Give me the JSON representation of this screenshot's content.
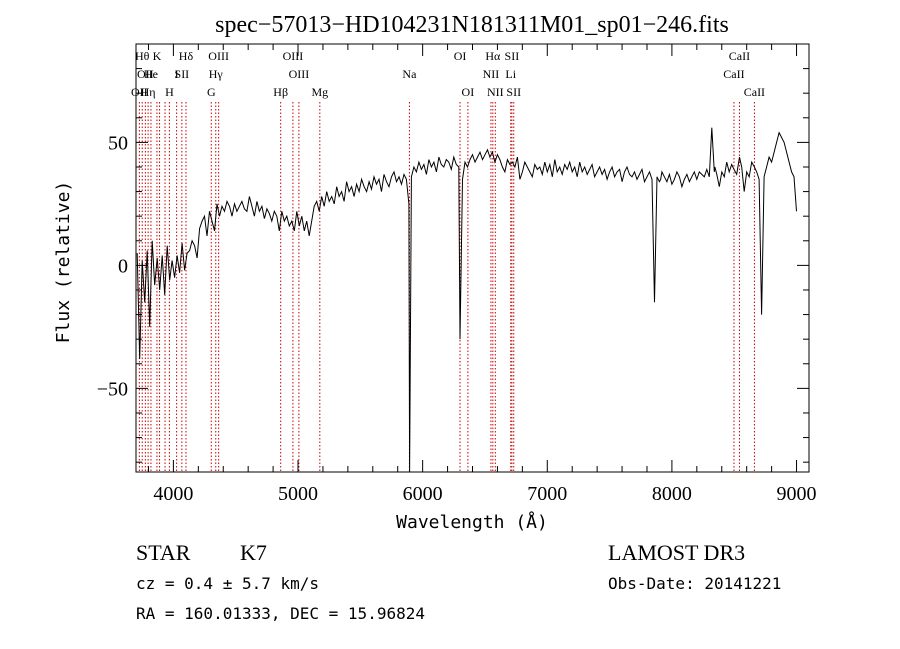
{
  "chart_data": {
    "type": "line",
    "title": "spec−57013−HD104231N181311M01_sp01−246.fits",
    "xlabel": "Wavelength (Å)",
    "ylabel": "Flux (relative)",
    "xlim": [
      3700,
      9100
    ],
    "ylim": [
      -84,
      90
    ],
    "xticks": [
      4000,
      5000,
      6000,
      7000,
      8000,
      9000
    ],
    "yticks": [
      50,
      0,
      -50
    ],
    "ytick_labels": [
      "50",
      "0",
      "−50"
    ],
    "grid": false,
    "line_color": "#000000",
    "marker_color": "#cc0000",
    "series": [
      {
        "x": [
          3710,
          3730,
          3750,
          3770,
          3790,
          3810,
          3830,
          3850,
          3870,
          3890,
          3910,
          3930,
          3950,
          3970,
          3990,
          4010,
          4030,
          4050,
          4070,
          4090,
          4110,
          4130,
          4150,
          4170,
          4190,
          4210,
          4230,
          4250,
          4270,
          4290,
          4310,
          4330,
          4350,
          4370,
          4390,
          4410,
          4430,
          4450,
          4470,
          4490,
          4510,
          4530,
          4550,
          4570,
          4590,
          4610,
          4630,
          4650,
          4670,
          4690,
          4710,
          4730,
          4750,
          4770,
          4790,
          4810,
          4830,
          4850,
          4870,
          4890,
          4910,
          4930,
          4950,
          4970,
          4990,
          5010,
          5030,
          5050,
          5070,
          5090,
          5110,
          5130,
          5150,
          5170,
          5190,
          5210,
          5230,
          5250,
          5270,
          5290,
          5310,
          5330,
          5350,
          5370,
          5390,
          5410,
          5430,
          5450,
          5470,
          5490,
          5510,
          5530,
          5550,
          5570,
          5590,
          5610,
          5630,
          5650,
          5670,
          5690,
          5710,
          5730,
          5750,
          5770,
          5790,
          5810,
          5830,
          5850,
          5870,
          5890,
          5895,
          5910,
          5930,
          5950,
          5970,
          5990,
          6010,
          6030,
          6050,
          6070,
          6090,
          6110,
          6130,
          6150,
          6170,
          6190,
          6210,
          6230,
          6250,
          6270,
          6290,
          6300,
          6320,
          6340,
          6360,
          6380,
          6400,
          6420,
          6440,
          6460,
          6480,
          6500,
          6520,
          6540,
          6560,
          6580,
          6600,
          6620,
          6640,
          6660,
          6680,
          6700,
          6720,
          6740,
          6760,
          6780,
          6800,
          6820,
          6840,
          6860,
          6880,
          6900,
          6920,
          6940,
          6960,
          6980,
          7000,
          7020,
          7040,
          7060,
          7080,
          7100,
          7120,
          7140,
          7160,
          7180,
          7200,
          7220,
          7240,
          7260,
          7280,
          7300,
          7320,
          7340,
          7360,
          7380,
          7400,
          7420,
          7440,
          7460,
          7480,
          7500,
          7520,
          7540,
          7560,
          7580,
          7600,
          7620,
          7640,
          7660,
          7680,
          7700,
          7720,
          7740,
          7760,
          7780,
          7800,
          7820,
          7840,
          7860,
          7880,
          7900,
          7910,
          7920,
          7940,
          7960,
          7980,
          8000,
          8020,
          8040,
          8060,
          8080,
          8100,
          8120,
          8140,
          8160,
          8180,
          8200,
          8220,
          8240,
          8260,
          8280,
          8300,
          8320,
          8340,
          8345,
          8360,
          8380,
          8400,
          8420,
          8440,
          8460,
          8480,
          8498,
          8520,
          8542,
          8560,
          8580,
          8600,
          8620,
          8640,
          8662,
          8680,
          8700,
          8720,
          8740,
          8760,
          8780,
          8800,
          8820,
          8840,
          8860,
          8880,
          8900,
          8920,
          8940,
          8960,
          8980,
          9000
        ],
        "y": [
          5,
          -38,
          2,
          -15,
          6,
          -25,
          10,
          -8,
          3,
          -10,
          4,
          -12,
          8,
          -6,
          2,
          -5,
          4,
          -3,
          9,
          -2,
          5,
          6,
          10,
          8,
          3,
          15,
          18,
          20,
          12,
          22,
          18,
          14,
          25,
          20,
          24,
          22,
          26,
          24,
          20,
          25,
          22,
          24,
          26,
          23,
          22,
          28,
          24,
          20,
          26,
          22,
          24,
          19,
          23,
          21,
          18,
          22,
          20,
          14,
          22,
          18,
          20,
          16,
          18,
          14,
          22,
          16,
          20,
          14,
          18,
          12,
          18,
          24,
          26,
          22,
          28,
          24,
          30,
          26,
          28,
          25,
          32,
          28,
          30,
          26,
          34,
          30,
          32,
          28,
          33,
          30,
          35,
          32,
          30,
          34,
          31,
          36,
          33,
          35,
          30,
          37,
          34,
          32,
          36,
          38,
          34,
          36,
          33,
          37,
          35,
          25,
          -85,
          36,
          40,
          38,
          42,
          39,
          41,
          37,
          43,
          40,
          42,
          38,
          44,
          41,
          40,
          43,
          42,
          39,
          44,
          41,
          40,
          -30,
          35,
          42,
          40,
          43,
          45,
          42,
          44,
          46,
          43,
          45,
          47,
          44,
          46,
          42,
          45,
          43,
          40,
          38,
          43,
          41,
          42,
          40,
          44,
          35,
          38,
          42,
          40,
          38,
          36,
          41,
          39,
          40,
          37,
          42,
          38,
          41,
          36,
          43,
          38,
          40,
          37,
          41,
          39,
          42,
          38,
          40,
          36,
          42,
          38,
          40,
          37,
          39,
          41,
          36,
          38,
          40,
          37,
          39,
          35,
          38,
          40,
          36,
          38,
          39,
          34,
          38,
          40,
          37,
          36,
          38,
          35,
          37,
          39,
          34,
          36,
          38,
          35,
          -15,
          36,
          34,
          35,
          38,
          36,
          34,
          37,
          33,
          35,
          38,
          36,
          32,
          35,
          37,
          34,
          36,
          38,
          35,
          38,
          37,
          36,
          39,
          36,
          56,
          38,
          40,
          37,
          32,
          38,
          36,
          42,
          38,
          41,
          39,
          37,
          44,
          40,
          30,
          38,
          36,
          42,
          40,
          38,
          35,
          -20,
          36,
          40,
          44,
          42,
          46,
          50,
          54,
          52,
          50,
          46,
          42,
          38,
          36,
          22
        ]
      }
    ],
    "lines": [
      {
        "wl": 3727,
        "name": "OII",
        "row": 2
      },
      {
        "wl": 3750,
        "name": "Hθ",
        "row": 0
      },
      {
        "wl": 3775,
        "name": "OII",
        "row": 1
      },
      {
        "wl": 3797,
        "name": "Hη",
        "row": 2
      },
      {
        "wl": 3820,
        "name": "He",
        "row": 1
      },
      {
        "wl": 3868,
        "name": "K",
        "row": 0
      },
      {
        "wl": 3889,
        "name": "",
        "row": 1
      },
      {
        "wl": 3933,
        "name": "",
        "row": 2
      },
      {
        "wl": 3968,
        "name": "H",
        "row": 2
      },
      {
        "wl": 4026,
        "name": "I",
        "row": 1
      },
      {
        "wl": 4068,
        "name": "SII",
        "row": 1
      },
      {
        "wl": 4101,
        "name": "Hδ",
        "row": 0
      },
      {
        "wl": 4304,
        "name": "G",
        "row": 2
      },
      {
        "wl": 4340,
        "name": "Hγ",
        "row": 1
      },
      {
        "wl": 4363,
        "name": "OIII",
        "row": 0
      },
      {
        "wl": 4861,
        "name": "Hβ",
        "row": 2
      },
      {
        "wl": 4959,
        "name": "OIII",
        "row": 0
      },
      {
        "wl": 5007,
        "name": "OIII",
        "row": 1
      },
      {
        "wl": 5175,
        "name": "Mg",
        "row": 2
      },
      {
        "wl": 5894,
        "name": "Na",
        "row": 1
      },
      {
        "wl": 6300,
        "name": "OI",
        "row": 0
      },
      {
        "wl": 6363,
        "name": "OI",
        "row": 2
      },
      {
        "wl": 6548,
        "name": "NII",
        "row": 1
      },
      {
        "wl": 6563,
        "name": "Hα",
        "row": 0
      },
      {
        "wl": 6583,
        "name": "NII",
        "row": 2
      },
      {
        "wl": 6707,
        "name": "Li",
        "row": 1
      },
      {
        "wl": 6716,
        "name": "SII",
        "row": 0
      },
      {
        "wl": 6731,
        "name": "SII",
        "row": 2
      },
      {
        "wl": 8498,
        "name": "CaII",
        "row": 1
      },
      {
        "wl": 8542,
        "name": "CaII",
        "row": 0
      },
      {
        "wl": 8662,
        "name": "CaII",
        "row": 2
      }
    ]
  },
  "info": {
    "star": "STAR",
    "subclass": "K7",
    "survey": "LAMOST DR3",
    "cz": "cz = 0.4 ± 5.7 km/s",
    "obs_date": "Obs-Date: 20141221",
    "radec": "RA = 160.01333, DEC =  15.96824"
  }
}
